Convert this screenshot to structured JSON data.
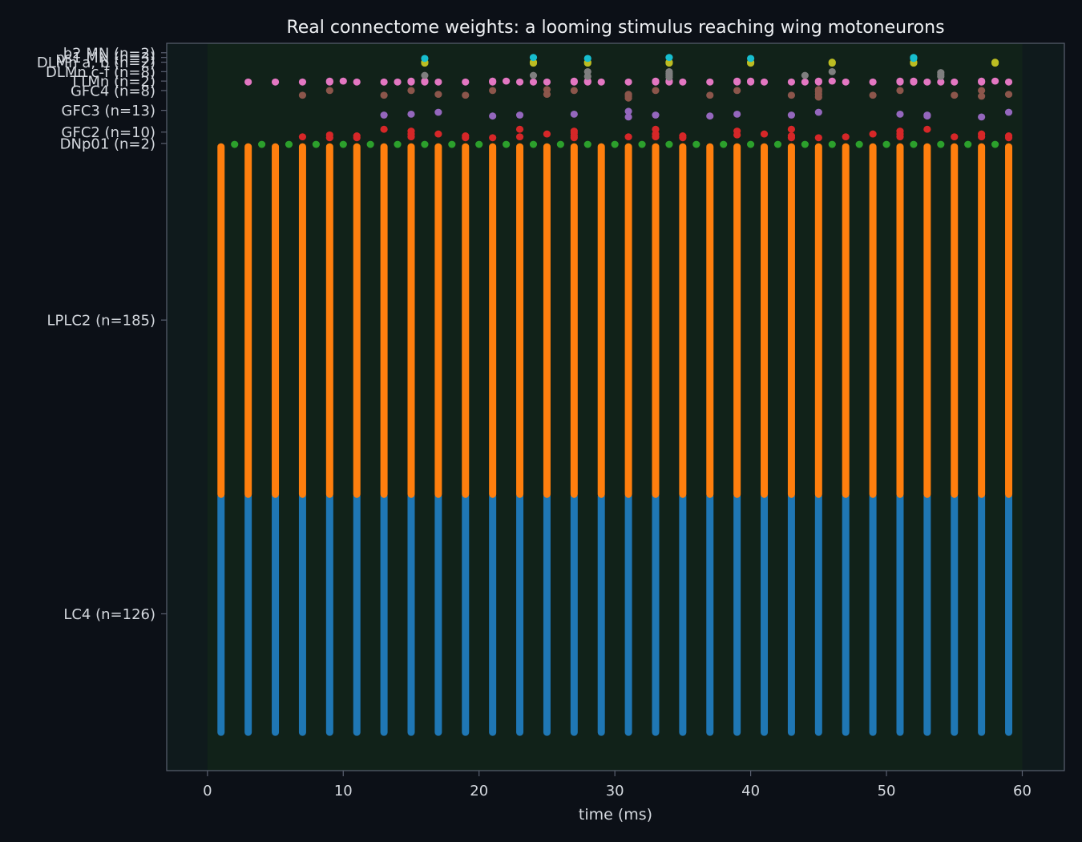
{
  "chart_data": {
    "type": "scatter",
    "title": "Real connectome weights: a looming stimulus reaching wing motoneurons",
    "xlabel": "time (ms)",
    "ylabel": "",
    "xlim": [
      -3,
      63.1
    ],
    "xticks": [
      0,
      10,
      20,
      30,
      40,
      50,
      60
    ],
    "stimulus_window": [
      0,
      60
    ],
    "grid": false,
    "colors": {
      "background": "#0c1017",
      "plot_background": "#0f1a1c",
      "stimulus_shade": "#112219",
      "axis": "#5a6070",
      "text": "#d4d8de",
      "title": "#eef0f3"
    },
    "groups": [
      {
        "label": "LC4 (n=126)",
        "color": "#1f77b4",
        "lo": 0,
        "hi": 126
      },
      {
        "label": "LPLC2 (n=185)",
        "color": "#ff7f0e",
        "lo": 126,
        "hi": 311
      },
      {
        "label": "DNp01 (n=2)",
        "color": "#2ca02c",
        "lo": 311,
        "hi": 313
      },
      {
        "label": "GFC2 (n=10)",
        "color": "#d62728",
        "lo": 313,
        "hi": 323
      },
      {
        "label": "GFC3 (n=13)",
        "color": "#9467bd",
        "lo": 323,
        "hi": 336
      },
      {
        "label": "GFC4 (n=8)",
        "color": "#8c564b",
        "lo": 336,
        "hi": 344
      },
      {
        "label": "TTMn (n=2)",
        "color": "#e377c2",
        "lo": 344,
        "hi": 346
      },
      {
        "label": "DLMn c-f (n=8)",
        "color": "#7f7f7f",
        "lo": 346,
        "hi": 354
      },
      {
        "label": "DLMn a, b (n=2)",
        "color": "#bcbd22",
        "lo": 354,
        "hi": 356
      },
      {
        "label": "ps1 MN (n=3)",
        "color": "#17becf",
        "lo": 356,
        "hi": 359
      },
      {
        "label": "b2 MN (n=2)",
        "color": "#17becf",
        "lo": 359,
        "hi": 361
      }
    ],
    "sparse_series": [
      {
        "name": "DNp01 (n=2)",
        "color": "#2ca02c",
        "points": [
          [
            2,
            311.5
          ],
          [
            4,
            311.5
          ],
          [
            6,
            311.5
          ],
          [
            8,
            311.5
          ],
          [
            10,
            311.5
          ],
          [
            12,
            311.5
          ],
          [
            14,
            311.5
          ],
          [
            16,
            311.5
          ],
          [
            18,
            311.5
          ],
          [
            20,
            311.5
          ],
          [
            22,
            311.5
          ],
          [
            24,
            311.5
          ],
          [
            26,
            311.5
          ],
          [
            28,
            311.5
          ],
          [
            30,
            311.5
          ],
          [
            32,
            311.5
          ],
          [
            34,
            311.5
          ],
          [
            36,
            311.5
          ],
          [
            38,
            311.5
          ],
          [
            40,
            311.5
          ],
          [
            42,
            311.5
          ],
          [
            44,
            311.5
          ],
          [
            46,
            311.5
          ],
          [
            48,
            311.5
          ],
          [
            50,
            311.5
          ],
          [
            52,
            311.5
          ],
          [
            54,
            311.5
          ],
          [
            56,
            311.5
          ],
          [
            58,
            311.5
          ]
        ]
      },
      {
        "name": "GFC2 (n=10)",
        "color": "#d62728",
        "points": [
          [
            7,
            315.5
          ],
          [
            9,
            315
          ],
          [
            9,
            316.5
          ],
          [
            11,
            315
          ],
          [
            11,
            316
          ],
          [
            13,
            319.5
          ],
          [
            15,
            315.5
          ],
          [
            15,
            317
          ],
          [
            15,
            318.5
          ],
          [
            17,
            317
          ],
          [
            19,
            315
          ],
          [
            19,
            316
          ],
          [
            21,
            315
          ],
          [
            23,
            315.5
          ],
          [
            23,
            319.5
          ],
          [
            25,
            317
          ],
          [
            27,
            315
          ],
          [
            27,
            316
          ],
          [
            27,
            317.5
          ],
          [
            27,
            318.5
          ],
          [
            31,
            315.5
          ],
          [
            33,
            315.5
          ],
          [
            33,
            317
          ],
          [
            33,
            319.5
          ],
          [
            35,
            315
          ],
          [
            35,
            316
          ],
          [
            39,
            316.5
          ],
          [
            39,
            318.5
          ],
          [
            41,
            317
          ],
          [
            43,
            315
          ],
          [
            43,
            316
          ],
          [
            43,
            319.5
          ],
          [
            45,
            315
          ],
          [
            47,
            315.5
          ],
          [
            49,
            317
          ],
          [
            51,
            315.5
          ],
          [
            51,
            317
          ],
          [
            51,
            318.5
          ],
          [
            53,
            319.5
          ],
          [
            55,
            315.5
          ],
          [
            57,
            315.5
          ],
          [
            57,
            317
          ],
          [
            59,
            315
          ],
          [
            59,
            316
          ]
        ]
      },
      {
        "name": "GFC3 (n=13)",
        "color": "#9467bd",
        "points": [
          [
            13,
            327
          ],
          [
            15,
            327.5
          ],
          [
            17,
            328.5
          ],
          [
            21,
            326.5
          ],
          [
            23,
            327
          ],
          [
            27,
            327.5
          ],
          [
            31,
            326
          ],
          [
            31,
            329
          ],
          [
            33,
            327
          ],
          [
            37,
            326.5
          ],
          [
            39,
            327.5
          ],
          [
            43,
            327
          ],
          [
            45,
            328.5
          ],
          [
            51,
            327.5
          ],
          [
            53,
            326.5
          ],
          [
            53,
            327
          ],
          [
            57,
            326
          ],
          [
            59,
            328.5
          ]
        ]
      },
      {
        "name": "GFC4 (n=8)",
        "color": "#8c564b",
        "points": [
          [
            7,
            337.5
          ],
          [
            9,
            340
          ],
          [
            13,
            337.5
          ],
          [
            15,
            340
          ],
          [
            17,
            338
          ],
          [
            19,
            337.5
          ],
          [
            21,
            340
          ],
          [
            25,
            338
          ],
          [
            25,
            340.5
          ],
          [
            27,
            340
          ],
          [
            31,
            336
          ],
          [
            31,
            337
          ],
          [
            31,
            338
          ],
          [
            33,
            340
          ],
          [
            37,
            337.5
          ],
          [
            39,
            340
          ],
          [
            43,
            337.5
          ],
          [
            45,
            336.5
          ],
          [
            45,
            338
          ],
          [
            45,
            339.5
          ],
          [
            45,
            340.5
          ],
          [
            49,
            337.5
          ],
          [
            51,
            340
          ],
          [
            55,
            337.5
          ],
          [
            57,
            337
          ],
          [
            57,
            340
          ],
          [
            59,
            338
          ]
        ]
      },
      {
        "name": "TTMn (n=2)",
        "color": "#e377c2",
        "points": [
          [
            3,
            344.5
          ],
          [
            5,
            344.5
          ],
          [
            7,
            344.5
          ],
          [
            9,
            344.5
          ],
          [
            9,
            345
          ],
          [
            10,
            345
          ],
          [
            11,
            344.5
          ],
          [
            13,
            344.5
          ],
          [
            14,
            344.5
          ],
          [
            15,
            344.5
          ],
          [
            15,
            345
          ],
          [
            16,
            344.5
          ],
          [
            16,
            345
          ],
          [
            17,
            344.5
          ],
          [
            19,
            344.5
          ],
          [
            21,
            344.5
          ],
          [
            21,
            345
          ],
          [
            22,
            345
          ],
          [
            23,
            344.5
          ],
          [
            24,
            344.5
          ],
          [
            25,
            344.5
          ],
          [
            27,
            344.5
          ],
          [
            27,
            345
          ],
          [
            28,
            344.5
          ],
          [
            28,
            345
          ],
          [
            29,
            344.5
          ],
          [
            31,
            344.5
          ],
          [
            33,
            344.5
          ],
          [
            33,
            345
          ],
          [
            34,
            344.5
          ],
          [
            34,
            345
          ],
          [
            35,
            344.5
          ],
          [
            37,
            344.5
          ],
          [
            39,
            344.5
          ],
          [
            39,
            345
          ],
          [
            40,
            344.5
          ],
          [
            40,
            345
          ],
          [
            41,
            344.5
          ],
          [
            43,
            344.5
          ],
          [
            44,
            344.5
          ],
          [
            45,
            344.5
          ],
          [
            45,
            345
          ],
          [
            46,
            345
          ],
          [
            47,
            344.5
          ],
          [
            49,
            344.5
          ],
          [
            51,
            344.5
          ],
          [
            51,
            345
          ],
          [
            52,
            344.5
          ],
          [
            52,
            345
          ],
          [
            53,
            344.5
          ],
          [
            54,
            344.5
          ],
          [
            55,
            344.5
          ],
          [
            57,
            344.5
          ],
          [
            57,
            345
          ],
          [
            58,
            345
          ],
          [
            59,
            344.5
          ]
        ]
      },
      {
        "name": "DLMn c-f (n=8)",
        "color": "#7f7f7f",
        "points": [
          [
            16,
            348
          ],
          [
            24,
            348
          ],
          [
            28,
            347.5
          ],
          [
            28,
            350
          ],
          [
            34,
            347
          ],
          [
            34,
            348
          ],
          [
            34,
            349
          ],
          [
            34,
            350
          ],
          [
            44,
            348
          ],
          [
            46,
            350
          ],
          [
            54,
            347.5
          ],
          [
            54,
            348.5
          ],
          [
            54,
            349.5
          ]
        ]
      },
      {
        "name": "DLMn a, b (n=2)",
        "color": "#bcbd22",
        "points": [
          [
            16,
            354.5
          ],
          [
            16,
            355
          ],
          [
            24,
            354.5
          ],
          [
            24,
            355
          ],
          [
            28,
            354.5
          ],
          [
            28,
            355
          ],
          [
            34,
            354.5
          ],
          [
            34,
            355
          ],
          [
            40,
            354.5
          ],
          [
            40,
            355
          ],
          [
            46,
            354.5
          ],
          [
            46,
            355
          ],
          [
            52,
            354.5
          ],
          [
            52,
            355
          ],
          [
            58,
            354.5
          ],
          [
            58,
            355
          ]
        ]
      },
      {
        "name": "ps1 MN (n=3)",
        "color": "#17becf",
        "points": [
          [
            16,
            357
          ],
          [
            24,
            357.5
          ],
          [
            28,
            357
          ],
          [
            34,
            357.5
          ],
          [
            40,
            357
          ],
          [
            52,
            357
          ],
          [
            52,
            357.5
          ]
        ]
      }
    ]
  }
}
